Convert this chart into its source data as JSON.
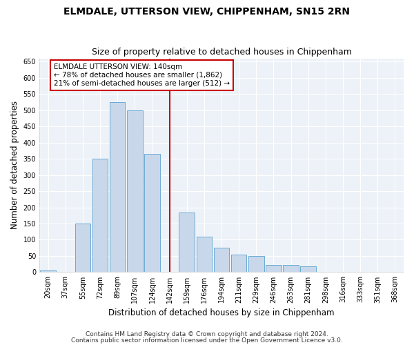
{
  "title": "ELMDALE, UTTERSON VIEW, CHIPPENHAM, SN15 2RN",
  "subtitle": "Size of property relative to detached houses in Chippenham",
  "xlabel": "Distribution of detached houses by size in Chippenham",
  "ylabel": "Number of detached properties",
  "bar_labels": [
    "20sqm",
    "37sqm",
    "55sqm",
    "72sqm",
    "89sqm",
    "107sqm",
    "124sqm",
    "142sqm",
    "159sqm",
    "176sqm",
    "194sqm",
    "211sqm",
    "229sqm",
    "246sqm",
    "263sqm",
    "281sqm",
    "298sqm",
    "316sqm",
    "333sqm",
    "351sqm",
    "368sqm"
  ],
  "bar_values": [
    5,
    0,
    150,
    350,
    525,
    500,
    365,
    0,
    185,
    110,
    75,
    55,
    50,
    22,
    22,
    18,
    0,
    0,
    0,
    0,
    0
  ],
  "bar_color": "#c8d8ea",
  "bar_edge_color": "#6aaad4",
  "red_line_index": 7,
  "red_line_color": "#cc0000",
  "ylim": [
    0,
    660
  ],
  "yticks": [
    0,
    50,
    100,
    150,
    200,
    250,
    300,
    350,
    400,
    450,
    500,
    550,
    600,
    650
  ],
  "annotation_text": "ELMDALE UTTERSON VIEW: 140sqm\n← 78% of detached houses are smaller (1,862)\n21% of semi-detached houses are larger (512) →",
  "annotation_box_facecolor": "#ffffff",
  "annotation_box_edgecolor": "#cc0000",
  "footer1": "Contains HM Land Registry data © Crown copyright and database right 2024.",
  "footer2": "Contains public sector information licensed under the Open Government Licence v3.0.",
  "background_color": "#ffffff",
  "plot_bg_color": "#edf2f8",
  "grid_color": "#ffffff",
  "title_fontsize": 10,
  "subtitle_fontsize": 9,
  "axis_label_fontsize": 8.5,
  "tick_fontsize": 7,
  "annotation_fontsize": 7.5,
  "footer_fontsize": 6.5
}
